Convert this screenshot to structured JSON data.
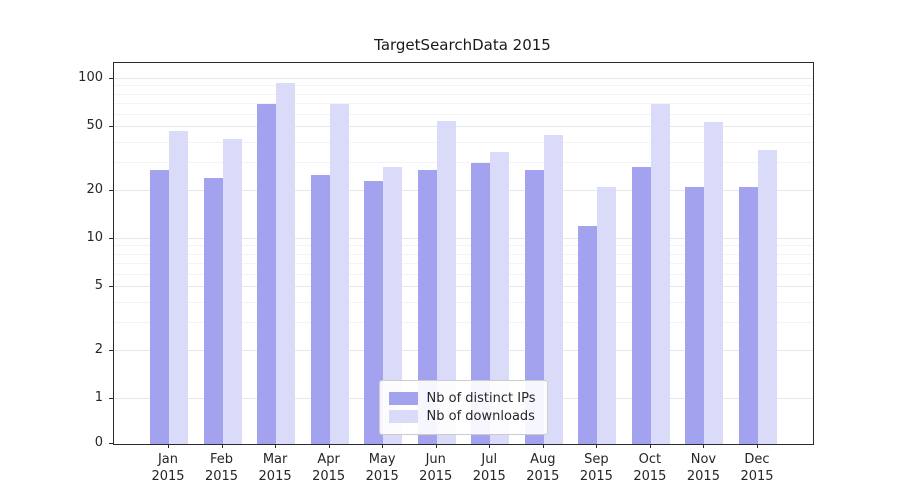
{
  "title": "TargetSearchData 2015",
  "chart_data": {
    "type": "bar",
    "title": "TargetSearchData 2015",
    "xlabel": "",
    "ylabel": "",
    "yscale": "symlog",
    "ylim": [
      0,
      120
    ],
    "yticks": [
      0,
      1,
      2,
      5,
      10,
      20,
      50,
      100
    ],
    "grid": "horizontal-light",
    "legend_position": "lower center",
    "categories": [
      "Jan",
      "Feb",
      "Mar",
      "Apr",
      "May",
      "Jun",
      "Jul",
      "Aug",
      "Sep",
      "Oct",
      "Nov",
      "Dec"
    ],
    "category_year": "2015",
    "series": [
      {
        "name": "Nb of distinct IPs",
        "color": "#a2a2ef",
        "values": [
          27,
          24,
          70,
          25,
          23,
          27,
          30,
          27,
          12,
          28,
          21,
          21
        ]
      },
      {
        "name": "Nb of downloads",
        "color": "#dadaf9",
        "values": [
          47,
          42,
          95,
          70,
          28,
          55,
          35,
          45,
          21,
          70,
          54,
          36
        ]
      }
    ]
  }
}
